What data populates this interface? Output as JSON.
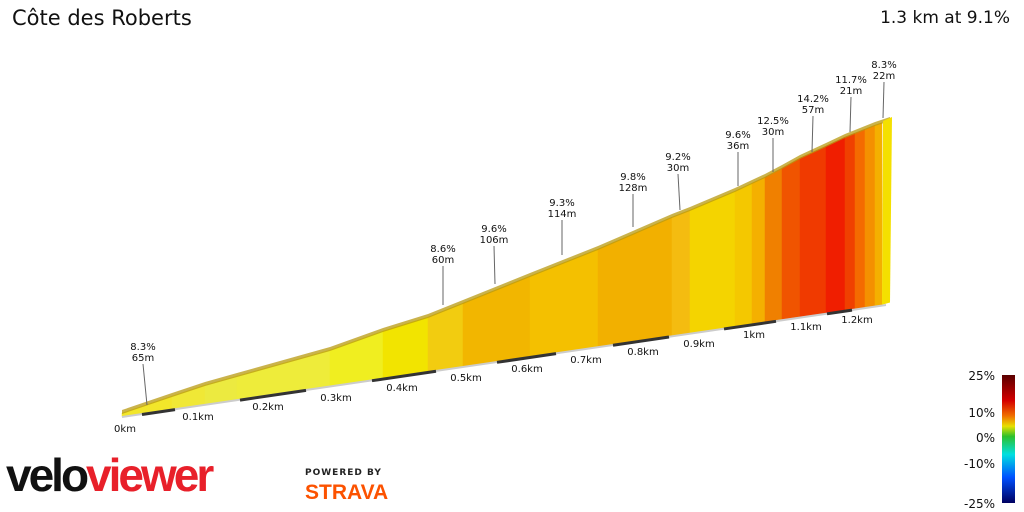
{
  "header": {
    "title": "Côte des Roberts",
    "summary": "1.3 km at 9.1%"
  },
  "branding": {
    "logo_left": "velo",
    "logo_right": "viewer",
    "powered_by": "POWERED BY",
    "strava": "STRAVA"
  },
  "chart_data": {
    "type": "area",
    "title": "Côte des Roberts",
    "x_unit": "km",
    "x_ticks": [
      "0km",
      "0.1km",
      "0.2km",
      "0.3km",
      "0.4km",
      "0.5km",
      "0.6km",
      "0.7km",
      "0.8km",
      "0.9km",
      "1km",
      "1.1km",
      "1.2km"
    ],
    "segment_annotations": [
      {
        "gradient": "8.3%",
        "length": "65m"
      },
      {
        "gradient": "8.6%",
        "length": "60m"
      },
      {
        "gradient": "9.6%",
        "length": "106m"
      },
      {
        "gradient": "9.3%",
        "length": "114m"
      },
      {
        "gradient": "9.8%",
        "length": "128m"
      },
      {
        "gradient": "9.2%",
        "length": "30m"
      },
      {
        "gradient": "9.6%",
        "length": "36m"
      },
      {
        "gradient": "12.5%",
        "length": "30m"
      },
      {
        "gradient": "14.2%",
        "length": "57m"
      },
      {
        "gradient": "11.7%",
        "length": "21m"
      },
      {
        "gradient": "8.3%",
        "length": "22m"
      }
    ],
    "legend": {
      "labels": [
        "25%",
        "10%",
        "0%",
        "-10%",
        "-25%"
      ],
      "colors": [
        "#5a0000",
        "#d40000",
        "#f07000",
        "#e8e000",
        "#2cc02c",
        "#00e0e0",
        "#0050ff",
        "#000060"
      ]
    }
  }
}
